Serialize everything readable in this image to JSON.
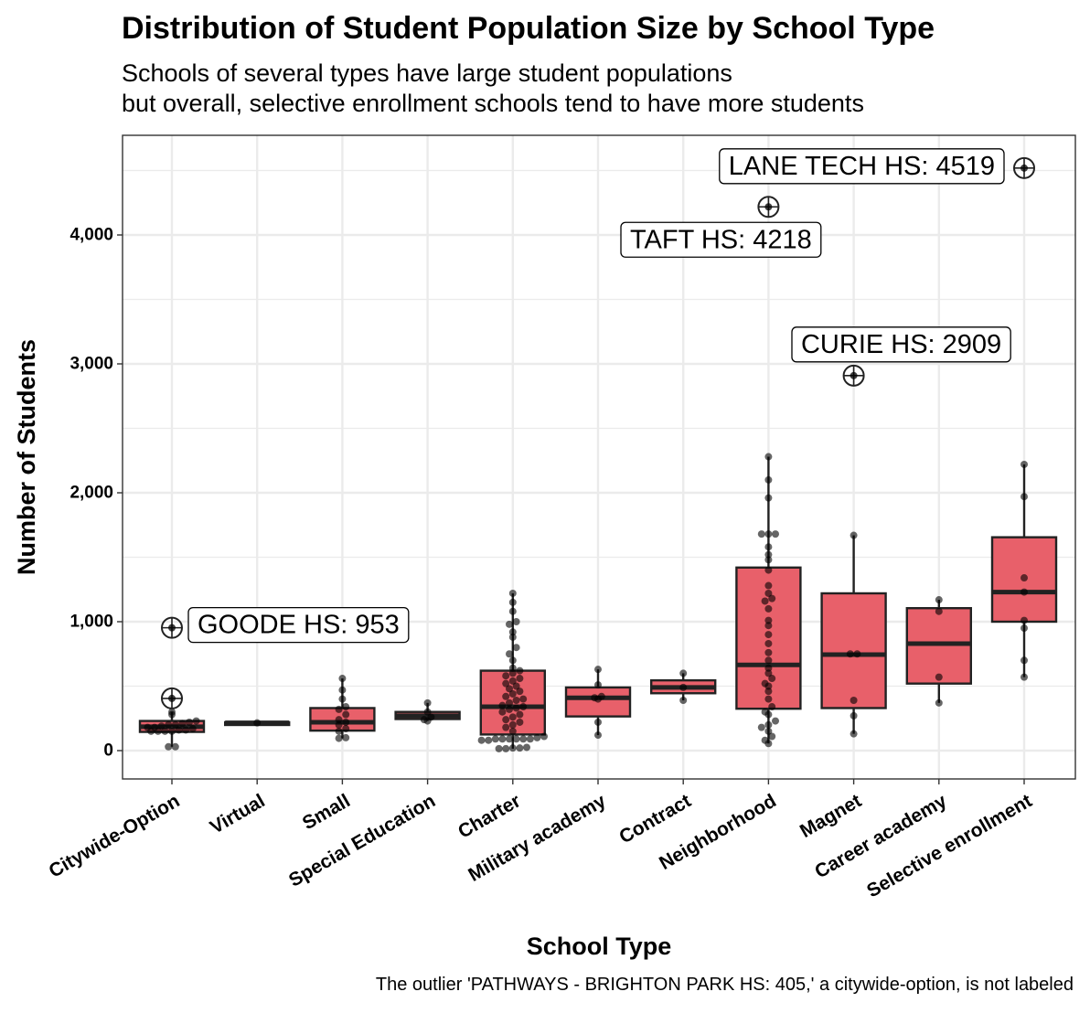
{
  "title": "Distribution of Student Population Size by School Type",
  "subtitle_line1": "Schools of several types have large student populations",
  "subtitle_line2": "but overall, selective enrollment schools tend to have more students",
  "caption": "The outlier 'PATHWAYS - BRIGHTON PARK HS: 405,' a citywide-option, is not labeled",
  "colors": {
    "box_fill": "#e8606a",
    "box_stroke": "#222222",
    "point": "#000000",
    "grid": "#ebebeb",
    "panel_border": "#333333"
  },
  "chart_data": {
    "type": "box",
    "title": "Distribution of Student Population Size by School Type",
    "xlabel": "School Type",
    "ylabel": "Number of Students",
    "ylim": [
      -220,
      4700
    ],
    "y_ticks": [
      0,
      1000,
      2000,
      3000,
      4000
    ],
    "y_tick_labels": [
      "0",
      "1,000",
      "2,000",
      "3,000",
      "4,000"
    ],
    "grid": true,
    "categories": [
      "Citywide-Option",
      "Virtual",
      "Small",
      "Special Education",
      "Charter",
      "Military academy",
      "Contract",
      "Neighborhood",
      "Magnet",
      "Career academy",
      "Selective enrollment"
    ],
    "boxes": [
      {
        "category": "Citywide-Option",
        "q1": 145,
        "median": 185,
        "q3": 230,
        "whisker_low": 30,
        "whisker_high": 300,
        "points": [
          30,
          30,
          150,
          150,
          150,
          150,
          160,
          160,
          170,
          180,
          180,
          190,
          200,
          200,
          210,
          220,
          230,
          280,
          300
        ]
      },
      {
        "category": "Virtual",
        "q1": 210,
        "median": 215,
        "q3": 220,
        "whisker_low": 210,
        "whisker_high": 220,
        "points": [
          215
        ]
      },
      {
        "category": "Small",
        "q1": 155,
        "median": 220,
        "q3": 330,
        "whisker_low": 95,
        "whisker_high": 560,
        "points": [
          95,
          100,
          150,
          170,
          200,
          220,
          240,
          280,
          320,
          340,
          400,
          470,
          560
        ]
      },
      {
        "category": "Special Education",
        "q1": 245,
        "median": 270,
        "q3": 300,
        "whisker_low": 230,
        "whisker_high": 370,
        "points": [
          230,
          240,
          260,
          300,
          370
        ]
      },
      {
        "category": "Charter",
        "q1": 125,
        "median": 340,
        "q3": 620,
        "whisker_low": 15,
        "whisker_high": 1220,
        "points": [
          15,
          15,
          20,
          20,
          25,
          80,
          80,
          90,
          90,
          90,
          90,
          90,
          90,
          100,
          110,
          150,
          180,
          200,
          220,
          240,
          260,
          280,
          300,
          320,
          330,
          340,
          350,
          370,
          390,
          400,
          420,
          440,
          460,
          480,
          500,
          520,
          540,
          560,
          580,
          600,
          620,
          640,
          700,
          750,
          800,
          880,
          920,
          980,
          1000,
          1080,
          1150,
          1220
        ]
      },
      {
        "category": "Military academy",
        "q1": 265,
        "median": 410,
        "q3": 490,
        "whisker_low": 120,
        "whisker_high": 630,
        "points": [
          120,
          220,
          400,
          410,
          420,
          510,
          630
        ]
      },
      {
        "category": "Contract",
        "q1": 445,
        "median": 490,
        "q3": 545,
        "whisker_low": 390,
        "whisker_high": 600,
        "points": [
          390,
          490,
          600
        ]
      },
      {
        "category": "Neighborhood",
        "q1": 325,
        "median": 665,
        "q3": 1420,
        "whisker_low": 55,
        "whisker_high": 2280,
        "points": [
          55,
          80,
          110,
          150,
          180,
          200,
          230,
          280,
          300,
          340,
          400,
          460,
          500,
          520,
          560,
          600,
          640,
          700,
          760,
          830,
          900,
          970,
          1010,
          1100,
          1160,
          1180,
          1220,
          1280,
          1400,
          1480,
          1520,
          1580,
          1680,
          1680,
          1680,
          1960,
          2100,
          2280
        ]
      },
      {
        "category": "Magnet",
        "q1": 330,
        "median": 745,
        "q3": 1220,
        "whisker_low": 130,
        "whisker_high": 1670,
        "points": [
          130,
          270,
          390,
          750,
          750,
          1670
        ]
      },
      {
        "category": "Career academy",
        "q1": 520,
        "median": 830,
        "q3": 1105,
        "whisker_low": 370,
        "whisker_high": 1170,
        "points": [
          370,
          570,
          1080,
          1170
        ]
      },
      {
        "category": "Selective enrollment",
        "q1": 1000,
        "median": 1230,
        "q3": 1655,
        "whisker_low": 570,
        "whisker_high": 2220,
        "points": [
          570,
          700,
          950,
          1010,
          1230,
          1340,
          1970,
          2220
        ]
      }
    ],
    "outliers": [
      {
        "category": "Citywide-Option",
        "value": 953
      },
      {
        "category": "Citywide-Option",
        "value": 405
      },
      {
        "category": "Neighborhood",
        "value": 4218
      },
      {
        "category": "Magnet",
        "value": 2909
      },
      {
        "category": "Selective enrollment",
        "value": 4519
      }
    ],
    "annotations": [
      {
        "text": "GOODE HS: 953",
        "category": "Citywide-Option",
        "value": 953
      },
      {
        "text": "TAFT HS: 4218",
        "category": "Neighborhood",
        "value": 4218
      },
      {
        "text": "CURIE HS: 2909",
        "category": "Magnet",
        "value": 2909
      },
      {
        "text": "LANE TECH HS: 4519",
        "category": "Selective enrollment",
        "value": 4519
      }
    ]
  }
}
